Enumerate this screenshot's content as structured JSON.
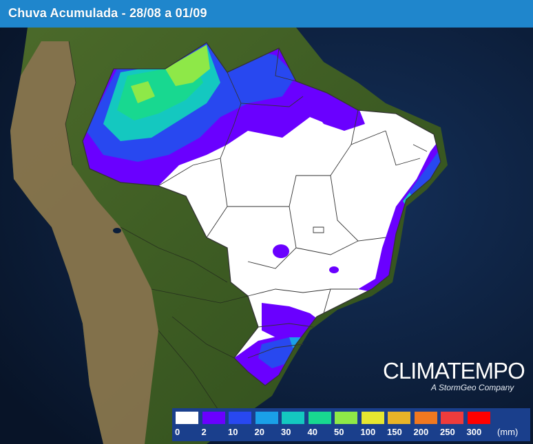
{
  "header": {
    "title": "Chuva Acumulada - 28/08 a 01/09"
  },
  "brand": {
    "name": "CLIMATEMPO",
    "tagline": "A StormGeo Company"
  },
  "legend": {
    "unit": "(mm)",
    "classes": [
      {
        "label": "0",
        "color": "#ffffff"
      },
      {
        "label": "2",
        "color": "#6a00ff"
      },
      {
        "label": "10",
        "color": "#2848f0"
      },
      {
        "label": "20",
        "color": "#1aa0e8"
      },
      {
        "label": "30",
        "color": "#14c8c0"
      },
      {
        "label": "40",
        "color": "#18d890"
      },
      {
        "label": "50",
        "color": "#8ee848"
      },
      {
        "label": "100",
        "color": "#e6e630"
      },
      {
        "label": "150",
        "color": "#e8b428"
      },
      {
        "label": "200",
        "color": "#f07820"
      },
      {
        "label": "250",
        "color": "#ee3c3c"
      },
      {
        "label": "300",
        "color": "#ff0000"
      }
    ]
  },
  "colors": {
    "ocean": "#0b1e3a",
    "land": "#3d5c22",
    "andes": "#8a7350",
    "brazil_dry": "#ffffff",
    "rain_light": "#6a00ff",
    "rain_moderate": "#2848f0",
    "rain_heavy": "#8ee848"
  }
}
